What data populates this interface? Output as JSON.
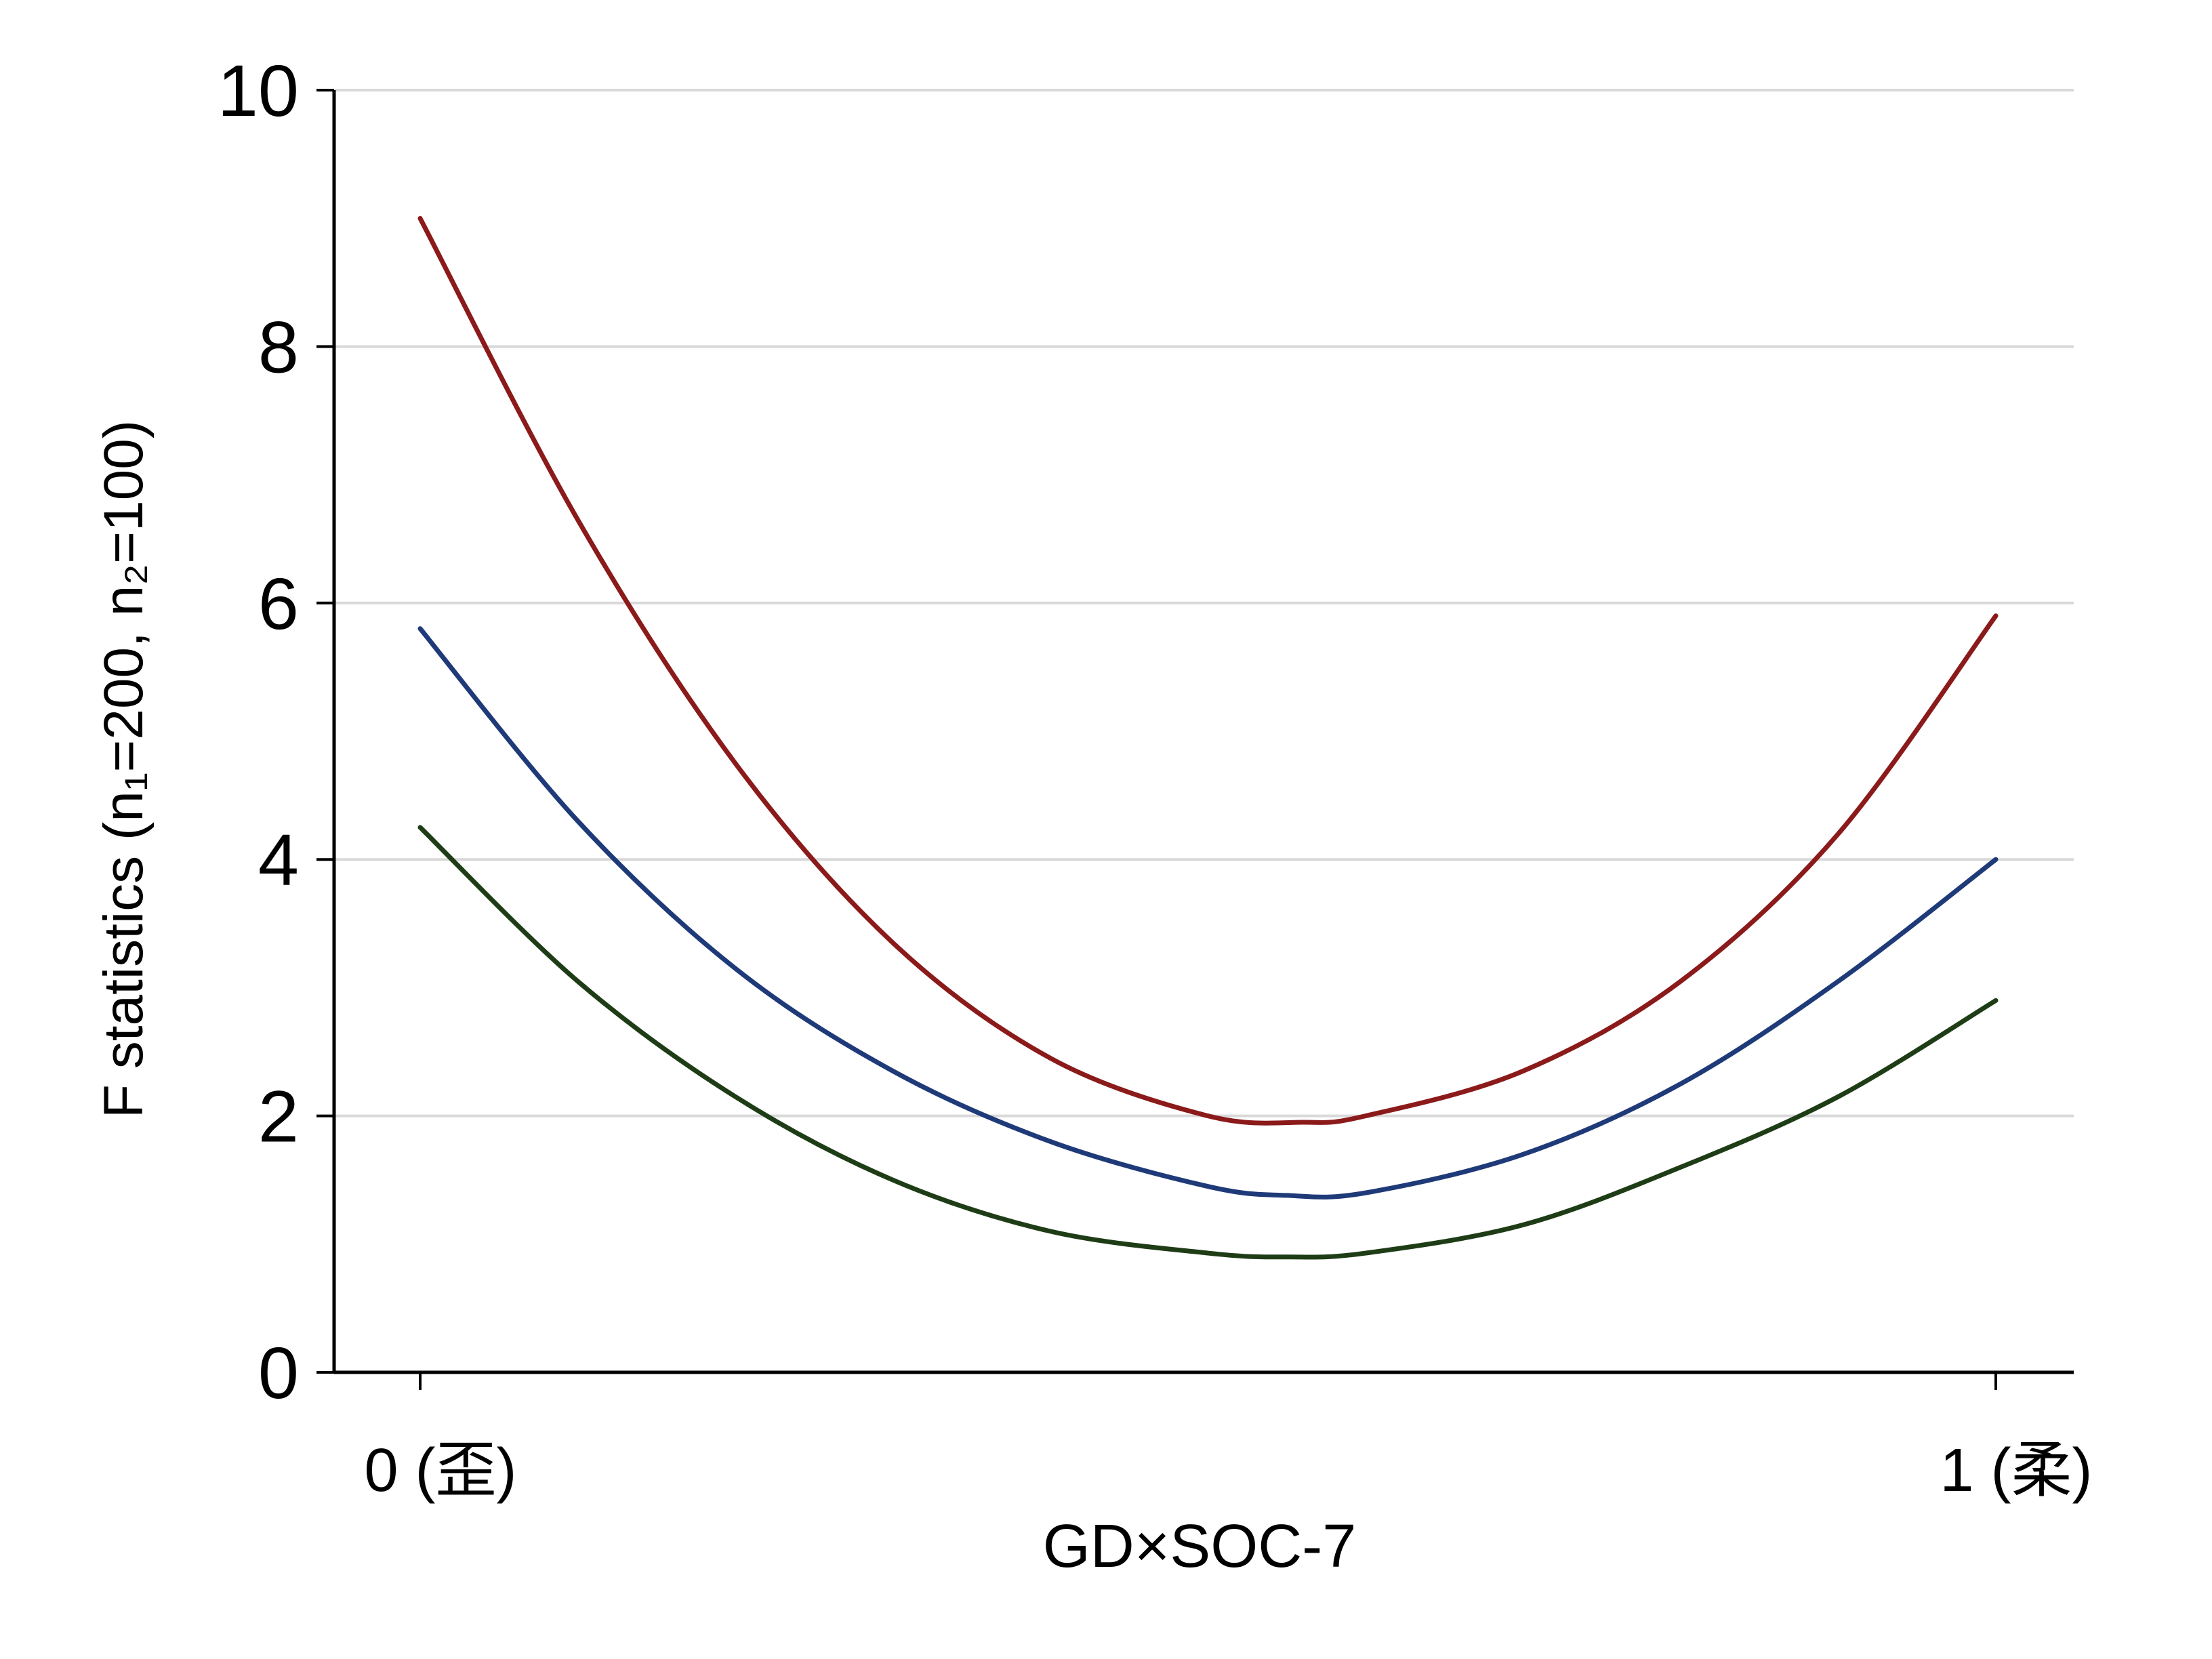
{
  "chart_data": {
    "type": "line",
    "xlabel": "GD×SOC-7",
    "ylabel": "F statistics (n₁=200, n₂=100)",
    "xlim": [
      0,
      1
    ],
    "ylim": [
      0,
      10
    ],
    "grid": true,
    "legend": "none",
    "y_ticks": [
      0,
      2,
      4,
      6,
      8,
      10
    ],
    "x_ticks": [
      {
        "value": 0,
        "label": "0 (歪)"
      },
      {
        "value": 1,
        "label": "1 (柔)"
      }
    ],
    "series": [
      {
        "color": "#8b1a1a",
        "x": [
          0,
          0.1,
          0.2,
          0.3,
          0.4,
          0.5,
          0.56,
          0.6,
          0.7,
          0.8,
          0.9,
          1.0
        ],
        "y": [
          9.0,
          6.65,
          4.75,
          3.35,
          2.45,
          2.0,
          1.95,
          2.0,
          2.35,
          3.05,
          4.2,
          5.9
        ]
      },
      {
        "color": "#1f3a78",
        "x": [
          0,
          0.1,
          0.2,
          0.3,
          0.4,
          0.5,
          0.55,
          0.6,
          0.7,
          0.8,
          0.9,
          1.0
        ],
        "y": [
          5.8,
          4.3,
          3.15,
          2.35,
          1.8,
          1.45,
          1.38,
          1.4,
          1.7,
          2.25,
          3.05,
          4.0
        ]
      },
      {
        "color": "#1e3d16",
        "x": [
          0,
          0.1,
          0.2,
          0.3,
          0.4,
          0.5,
          0.55,
          0.6,
          0.7,
          0.8,
          0.9,
          1.0
        ],
        "y": [
          4.25,
          3.05,
          2.15,
          1.5,
          1.1,
          0.93,
          0.9,
          0.93,
          1.15,
          1.6,
          2.15,
          2.9
        ]
      }
    ]
  }
}
